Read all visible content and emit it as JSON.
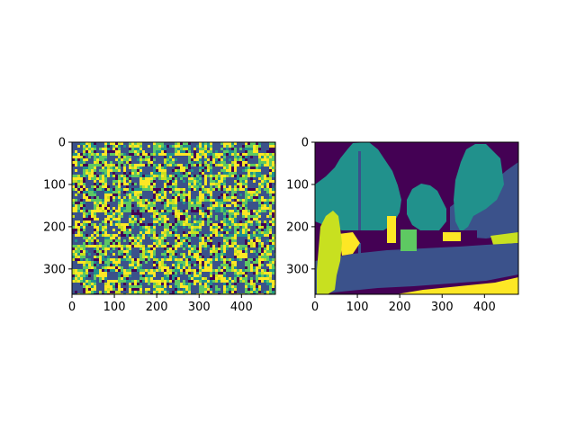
{
  "colors": {
    "purple": "#440154",
    "indigo": "#3b528b",
    "teal": "#21918c",
    "green": "#5ec962",
    "lime": "#c8e020",
    "yellow": "#fde725"
  },
  "chart_data": [
    {
      "type": "heatmap",
      "title": "",
      "xlabel": "",
      "ylabel": "",
      "xlim": [
        0,
        480
      ],
      "ylim": [
        360,
        0
      ],
      "x_ticks": [
        "0",
        "100",
        "200",
        "300",
        "400"
      ],
      "y_ticks": [
        "0",
        "100",
        "200",
        "300"
      ],
      "colormap": "viridis",
      "content": "noisy checkerboard pattern of indigo squares separated by speckled green/yellow/purple noise"
    },
    {
      "type": "heatmap",
      "title": "",
      "xlabel": "",
      "ylabel": "",
      "xlim": [
        0,
        480
      ],
      "ylim": [
        360,
        0
      ],
      "x_ticks": [
        "0",
        "100",
        "200",
        "300",
        "400"
      ],
      "y_ticks": [
        "0",
        "100",
        "200",
        "300"
      ],
      "colormap": "viridis",
      "content": "semantic segmentation label map of a street scene: sky, trees, road, sidewalk, pedestrian"
    }
  ]
}
